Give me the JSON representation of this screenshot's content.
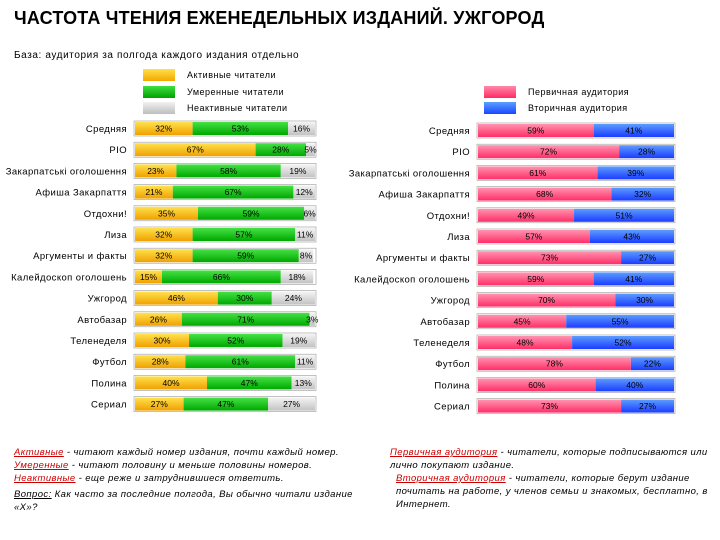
{
  "title": "ЧАСТОТА ЧТЕНИЯ ЕЖЕНЕДЕЛЬНЫХ ИЗДАНИЙ. УЖГОРОД",
  "base_note": "База: аудитория за полгода каждого издания отдельно",
  "colors": {
    "active": "#f5b400",
    "moderate": "#1fbf1f",
    "inactive": "#d0d0d0",
    "primary": "#ff4d7e",
    "secondary": "#2a5cff"
  },
  "chart_data": [
    {
      "type": "bar",
      "orientation": "horizontal",
      "stacked": true,
      "legend": [
        "Активные читатели",
        "Умеренные читатели",
        "Неактивные читатели"
      ],
      "categories": [
        "Средняя",
        "PIO",
        "Закарпатські оголошення",
        "Афиша Закарпаття",
        "Отдохни!",
        "Лиза",
        "Аргументы и факты",
        "Калейдоскоп оголошень",
        "Ужгород",
        "Автобазар",
        "Теленеделя",
        "Футбол",
        "Полина",
        "Сериал"
      ],
      "series": [
        {
          "name": "Активные читатели",
          "values": [
            32,
            67,
            23,
            21,
            35,
            32,
            32,
            15,
            46,
            26,
            30,
            28,
            40,
            27
          ]
        },
        {
          "name": "Умеренные читатели",
          "values": [
            53,
            28,
            58,
            67,
            59,
            57,
            59,
            66,
            30,
            71,
            52,
            61,
            47,
            47
          ]
        },
        {
          "name": "Неактивные читатели",
          "values": [
            16,
            5,
            19,
            12,
            6,
            11,
            8,
            18,
            24,
            3,
            19,
            11,
            13,
            27
          ]
        }
      ],
      "labels_as_printed": [
        [
          "32%",
          "53%",
          "16%"
        ],
        [
          "67%",
          "28%",
          "5%"
        ],
        [
          "23%",
          "58%",
          "19%"
        ],
        [
          "21%",
          "67%",
          "12%"
        ],
        [
          "35%",
          "59%",
          "6%"
        ],
        [
          "32%",
          "57%",
          "11%"
        ],
        [
          "32%",
          "59%",
          "8%"
        ],
        [
          "15%",
          "66%",
          "18%"
        ],
        [
          "46%",
          "30%",
          "24%"
        ],
        [
          "26%",
          "71%",
          "3%"
        ],
        [
          "30%",
          "52%",
          "19%"
        ],
        [
          "28%",
          "61%",
          "11%"
        ],
        [
          "40%",
          "47%",
          "13%"
        ],
        [
          "27%",
          "47%",
          "27%"
        ]
      ],
      "xlim": [
        0,
        100
      ]
    },
    {
      "type": "bar",
      "orientation": "horizontal",
      "stacked": true,
      "legend": [
        "Первичная аудитория",
        "Вторичная аудитория"
      ],
      "categories": [
        "Средняя",
        "PIO",
        "Закарпатські оголошення",
        "Афиша Закарпаття",
        "Отдохни!",
        "Лиза",
        "Аргументы и факты",
        "Калейдоскоп оголошень",
        "Ужгород",
        "Автобазар",
        "Теленеделя",
        "Футбол",
        "Полина",
        "Сериал"
      ],
      "series": [
        {
          "name": "Первичная аудитория",
          "values": [
            59,
            72,
            61,
            68,
            49,
            57,
            73,
            59,
            70,
            45,
            48,
            78,
            60,
            73
          ]
        },
        {
          "name": "Вторичная аудитория",
          "values": [
            41,
            28,
            39,
            32,
            51,
            43,
            27,
            41,
            30,
            55,
            52,
            22,
            40,
            27
          ]
        }
      ],
      "labels_as_printed": [
        [
          "59%",
          "41%"
        ],
        [
          "72%",
          "28%"
        ],
        [
          "61%",
          "39%"
        ],
        [
          "68%",
          "32%"
        ],
        [
          "49%",
          "51%"
        ],
        [
          "57%",
          "43%"
        ],
        [
          "73%",
          "27%"
        ],
        [
          "59%",
          "41%"
        ],
        [
          "70%",
          "30%"
        ],
        [
          "45%",
          "55%"
        ],
        [
          "48%",
          "52%"
        ],
        [
          "78%",
          "22%"
        ],
        [
          "60%",
          "40%"
        ],
        [
          "73%",
          "27%"
        ]
      ],
      "xlim": [
        0,
        100
      ]
    }
  ],
  "footnotes": {
    "left": [
      {
        "term": "Активные",
        "text": " - читают каждый номер издания, почти каждый номер."
      },
      {
        "term": "Умеренные",
        "text": " - читают половину и меньше  половины номеров."
      },
      {
        "term": "Неактивные",
        "text": " - еще реже и затруднившиеся ответить."
      },
      {
        "term": "Вопрос:",
        "text": " Как часто за последние полгода, Вы обычно читали издание «Х»?"
      }
    ],
    "right": [
      {
        "term": "Первичная аудитория",
        "text": " - читатели, которые подписываются или лично покупают издание."
      },
      {
        "term": "Вторичная аудитория",
        "text": " - читатели, которые берут издание почитать на работе, у членов семьи и знакомых, бесплатно, в Интернет."
      }
    ]
  }
}
